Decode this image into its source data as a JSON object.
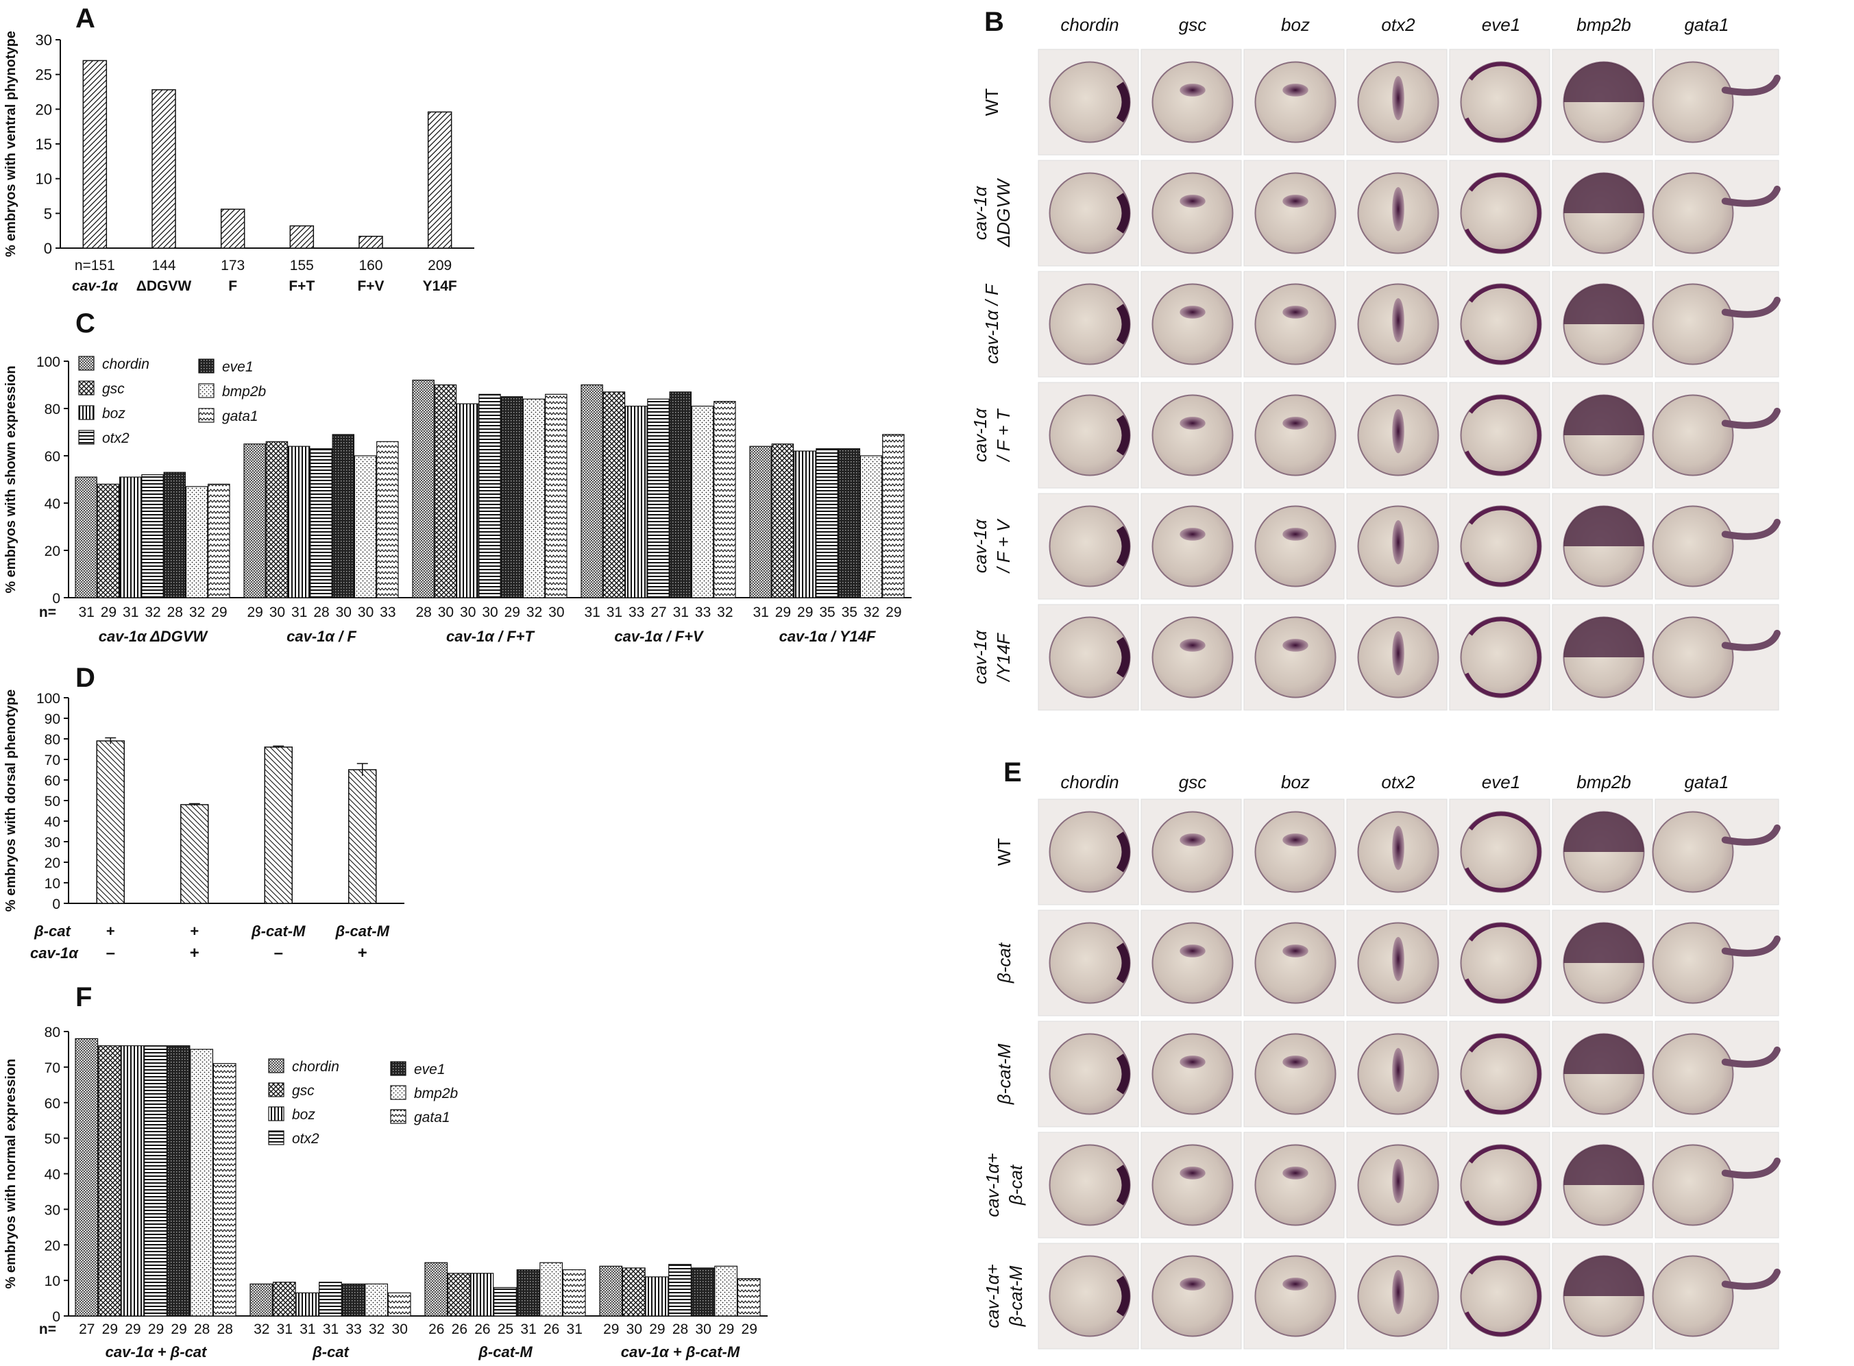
{
  "colors": {
    "ink": "#111111",
    "background": "#ffffff",
    "stain": "#5a1f4e",
    "embryo": "#d8cfc6"
  },
  "panels": {
    "A": {
      "letter": "A"
    },
    "B": {
      "letter": "B"
    },
    "C": {
      "letter": "C"
    },
    "D": {
      "letter": "D"
    },
    "E": {
      "letter": "E"
    },
    "F": {
      "letter": "F"
    }
  },
  "chart_data": [
    {
      "id": "A",
      "type": "bar",
      "ylabel": "% embryos with ventral phynotype",
      "ylim": [
        0,
        30
      ],
      "yticks": [
        "0",
        "5",
        "10",
        "15",
        "20",
        "25",
        "30"
      ],
      "categories": [
        "cav-1α",
        "ΔDGVW",
        "F",
        "F+T",
        "F+V",
        "Y14F"
      ],
      "n_labels": [
        "n=151",
        "144",
        "173",
        "155",
        "160",
        "209"
      ],
      "values": [
        27,
        22.8,
        5.6,
        3.2,
        1.7,
        19.6
      ],
      "pattern": "diagonal"
    },
    {
      "id": "C",
      "type": "bar",
      "ylabel": "% embryos with shown expression",
      "ylim": [
        0,
        100
      ],
      "yticks": [
        "0",
        "20",
        "40",
        "60",
        "80",
        "100"
      ],
      "n_prefix": "n=",
      "legend": [
        "chordin",
        "gsc",
        "boz",
        "otx2",
        "eve1",
        "bmp2b",
        "gata1"
      ],
      "groups": [
        {
          "label": "cav-1α     ΔDGVW",
          "bold_italic": "cav-1α",
          "values": [
            51,
            48,
            51,
            52,
            53,
            47,
            48
          ],
          "n": [
            "31",
            "29",
            "31",
            "32",
            "28",
            "32",
            "29"
          ]
        },
        {
          "label": "cav-1α / F",
          "values": [
            65,
            66,
            64,
            63,
            69,
            60,
            66
          ],
          "n": [
            "29",
            "30",
            "31",
            "28",
            "30",
            "30",
            "33"
          ]
        },
        {
          "label": "cav-1α / F+T",
          "values": [
            92,
            90,
            82,
            86,
            85,
            84,
            86
          ],
          "n": [
            "28",
            "30",
            "30",
            "30",
            "29",
            "32",
            "30"
          ]
        },
        {
          "label": "cav-1α / F+V",
          "values": [
            90,
            87,
            81,
            84,
            87,
            81,
            83
          ],
          "n": [
            "31",
            "31",
            "33",
            "27",
            "31",
            "33",
            "32"
          ]
        },
        {
          "label": "cav-1α / Y14F",
          "values": [
            64,
            65,
            62,
            63,
            63,
            60,
            69
          ],
          "n": [
            "31",
            "29",
            "29",
            "35",
            "35",
            "32",
            "29"
          ]
        }
      ]
    },
    {
      "id": "D",
      "type": "bar",
      "ylabel": "% embryos with dorsal phenotype",
      "ylim": [
        0,
        100
      ],
      "yticks": [
        "0",
        "10",
        "20",
        "30",
        "40",
        "50",
        "60",
        "70",
        "80",
        "90",
        "100"
      ],
      "values": [
        79,
        48,
        76,
        65
      ],
      "errors": [
        1.5,
        0.5,
        0.5,
        3
      ],
      "row1_label": "β-cat",
      "row2_label": "cav-1α",
      "row1": [
        "+",
        "+",
        "β-cat-M",
        "β-cat-M"
      ],
      "row2": [
        "–",
        "+",
        "–",
        "+"
      ]
    },
    {
      "id": "F",
      "type": "bar",
      "ylabel": "% embryos with normal expression",
      "ylim": [
        0,
        80
      ],
      "yticks": [
        "0",
        "10",
        "20",
        "30",
        "40",
        "50",
        "60",
        "70",
        "80"
      ],
      "n_prefix": "n=",
      "legend": [
        "chordin",
        "gsc",
        "boz",
        "otx2",
        "eve1",
        "bmp2b",
        "gata1"
      ],
      "groups": [
        {
          "label": "cav-1α + β-cat",
          "values": [
            78,
            76,
            76,
            76,
            76,
            75,
            71
          ],
          "n": [
            "27",
            "29",
            "29",
            "29",
            "29",
            "28",
            "28"
          ]
        },
        {
          "label": "β-cat",
          "values": [
            9,
            9.5,
            6.5,
            9.5,
            9,
            9,
            6.5
          ],
          "n": [
            "32",
            "31",
            "31",
            "31",
            "33",
            "32",
            "30"
          ]
        },
        {
          "label": "β-cat-M",
          "values": [
            15,
            12,
            12,
            8,
            13,
            15,
            13
          ],
          "n": [
            "26",
            "26",
            "26",
            "25",
            "31",
            "26",
            "31"
          ]
        },
        {
          "label": "cav-1α + β-cat-M",
          "values": [
            14,
            13.5,
            11,
            14.5,
            13.5,
            14,
            10.5
          ],
          "n": [
            "29",
            "30",
            "29",
            "28",
            "30",
            "29",
            "29"
          ]
        }
      ]
    }
  ],
  "photo_panels": {
    "B": {
      "genes": [
        "chordin",
        "gsc",
        "boz",
        "otx2",
        "eve1",
        "bmp2b",
        "gata1"
      ],
      "rows": [
        [
          "WT"
        ],
        [
          "cav-1α",
          "ΔDGVW"
        ],
        [
          "cav-1α / F"
        ],
        [
          "cav-1α",
          "/ F + T"
        ],
        [
          "cav-1α",
          "/ F + V"
        ],
        [
          "cav-1α",
          "/Y14F"
        ]
      ]
    },
    "E": {
      "genes": [
        "chordin",
        "gsc",
        "boz",
        "otx2",
        "eve1",
        "bmp2b",
        "gata1"
      ],
      "rows": [
        [
          "WT"
        ],
        [
          "β-cat"
        ],
        [
          "β-cat-M"
        ],
        [
          "cav-1α+",
          "β-cat"
        ],
        [
          "cav-1α+",
          "β-cat-M"
        ]
      ]
    }
  }
}
